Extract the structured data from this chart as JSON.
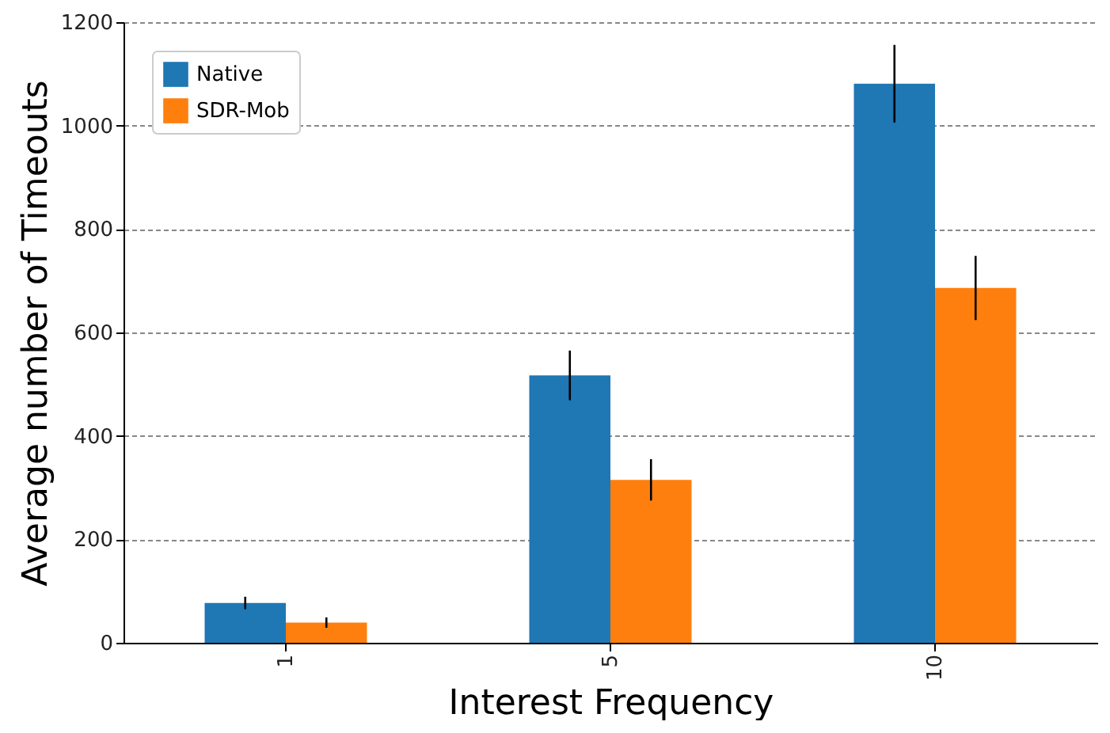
{
  "chart_data": {
    "type": "bar",
    "xlabel": "Interest Frequency",
    "ylabel": "Average number of Timeouts",
    "categories": [
      "1",
      "5",
      "10"
    ],
    "series": [
      {
        "name": "Native",
        "color": "#1f77b4",
        "values": [
          77,
          517,
          1081
        ],
        "errors": [
          12,
          48,
          75
        ]
      },
      {
        "name": "SDR-Mob",
        "color": "#ff7f0e",
        "values": [
          39,
          315,
          686
        ],
        "errors": [
          10,
          40,
          62
        ]
      }
    ],
    "ylim": [
      0,
      1200
    ],
    "yticks": [
      0,
      200,
      400,
      600,
      800,
      1000,
      1200
    ],
    "grid": "y",
    "legend": "top left"
  }
}
